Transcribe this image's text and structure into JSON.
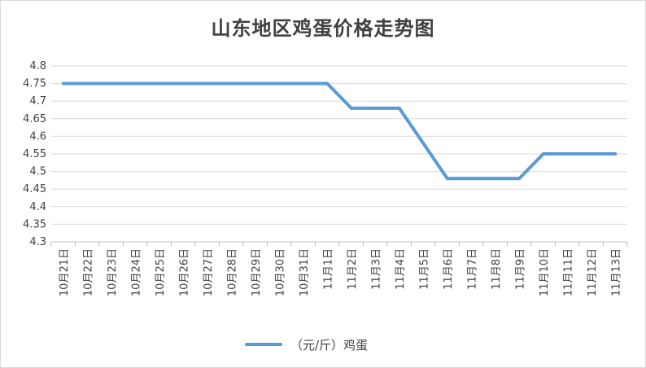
{
  "chart_data": {
    "type": "line",
    "title": "山东地区鸡蛋价格走势图",
    "categories": [
      "10月21日",
      "10月22日",
      "10月23日",
      "10月24日",
      "10月25日",
      "10月26日",
      "10月27日",
      "10月28日",
      "10月29日",
      "10月30日",
      "10月31日",
      "11月1日",
      "11月2日",
      "11月3日",
      "11月4日",
      "11月5日",
      "11月6日",
      "11月7日",
      "11月8日",
      "11月9日",
      "11月10日",
      "11月11日",
      "11月12日",
      "11月13日"
    ],
    "series": [
      {
        "name": "（元/斤）鸡蛋",
        "color": "#5b9bd5",
        "values": [
          4.75,
          4.75,
          4.75,
          4.75,
          4.75,
          4.75,
          4.75,
          4.75,
          4.75,
          4.75,
          4.75,
          4.75,
          4.68,
          4.68,
          4.68,
          4.58,
          4.48,
          4.48,
          4.48,
          4.48,
          4.55,
          4.55,
          4.55,
          4.55
        ]
      }
    ],
    "ylim": [
      4.3,
      4.8
    ],
    "yticks": [
      "4.3",
      "4.35",
      "4.4",
      "4.45",
      "4.5",
      "4.55",
      "4.6",
      "4.65",
      "4.7",
      "4.75",
      "4.8"
    ],
    "grid": true,
    "legend_position": "bottom",
    "xlabel": "",
    "ylabel": ""
  }
}
